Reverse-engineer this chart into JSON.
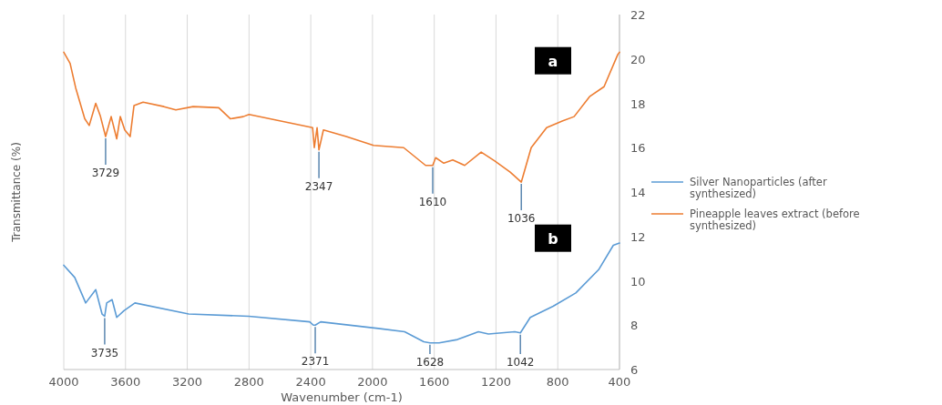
{
  "chart_data": {
    "type": "line",
    "xlabel": "Wavenumber (cm-1)",
    "ylabel": "Transmittance (%)",
    "xlim": [
      4000,
      400
    ],
    "xticks": [
      4000,
      3600,
      3200,
      2800,
      2400,
      2000,
      1600,
      1200,
      800,
      400
    ],
    "ylim": [
      6,
      22
    ],
    "yticks": [
      6,
      8,
      10,
      12,
      14,
      16,
      18,
      20,
      22
    ],
    "grid": "x",
    "legend": "right",
    "marker": "none",
    "line_style": "solid",
    "series": [
      {
        "name": "Silver Nanoparticles (after synthesized)",
        "color": "#5b9bd5",
        "x": [
          4000,
          3929,
          3858,
          3793,
          3752,
          3735,
          3722,
          3687,
          3657,
          3610,
          3539,
          3191,
          2802,
          2407,
          2383,
          2371,
          2336,
          1963,
          1792,
          1668,
          1628,
          1568,
          1450,
          1314,
          1249,
          1078,
          1042,
          978,
          830,
          683,
          535,
          440,
          400
        ],
        "values": [
          10.7,
          10.15,
          9.0,
          9.6,
          8.5,
          8.4,
          9.0,
          9.15,
          8.35,
          8.65,
          9.0,
          8.5,
          8.4,
          8.15,
          8.0,
          8.0,
          8.15,
          7.85,
          7.7,
          7.25,
          7.2,
          7.2,
          7.35,
          7.7,
          7.6,
          7.7,
          7.65,
          8.35,
          8.85,
          9.45,
          10.5,
          11.6,
          11.7
        ]
      },
      {
        "name": "Pineapple leaves extract (before synthesized)",
        "color": "#ed7d31",
        "x": [
          4000,
          3959,
          3923,
          3864,
          3835,
          3793,
          3764,
          3729,
          3693,
          3657,
          3634,
          3605,
          3570,
          3545,
          3486,
          3351,
          3274,
          3162,
          2996,
          2920,
          2837,
          2800,
          2388,
          2377,
          2359,
          2347,
          2318,
          2170,
          1993,
          1798,
          1656,
          1610,
          1591,
          1538,
          1480,
          1403,
          1296,
          1208,
          1108,
          1036,
          972,
          872,
          771,
          694,
          594,
          500,
          411,
          400
        ],
        "values": [
          20.3,
          19.8,
          18.7,
          17.3,
          17.0,
          18.0,
          17.45,
          16.5,
          17.4,
          16.4,
          17.4,
          16.8,
          16.5,
          17.9,
          18.05,
          17.85,
          17.7,
          17.85,
          17.8,
          17.3,
          17.4,
          17.5,
          16.9,
          16.0,
          16.9,
          15.9,
          16.8,
          16.5,
          16.1,
          16.0,
          15.2,
          15.2,
          15.55,
          15.3,
          15.45,
          15.2,
          15.8,
          15.4,
          14.9,
          14.45,
          16.0,
          16.9,
          17.2,
          17.4,
          18.3,
          18.75,
          20.2,
          20.3
        ]
      }
    ],
    "annotations": [
      {
        "text": "3729",
        "x": 3729,
        "y": 16.5
      },
      {
        "text": "2347",
        "x": 2347,
        "y": 15.9
      },
      {
        "text": "1610",
        "x": 1610,
        "y": 15.2
      },
      {
        "text": "1036",
        "x": 1036,
        "y": 14.45
      },
      {
        "text": "3735",
        "x": 3735,
        "y": 8.4
      },
      {
        "text": "2371",
        "x": 2371,
        "y": 8.0
      },
      {
        "text": "1628",
        "x": 1628,
        "y": 7.2
      },
      {
        "text": "1042",
        "x": 1042,
        "y": 7.65
      },
      "a",
      "b"
    ]
  }
}
